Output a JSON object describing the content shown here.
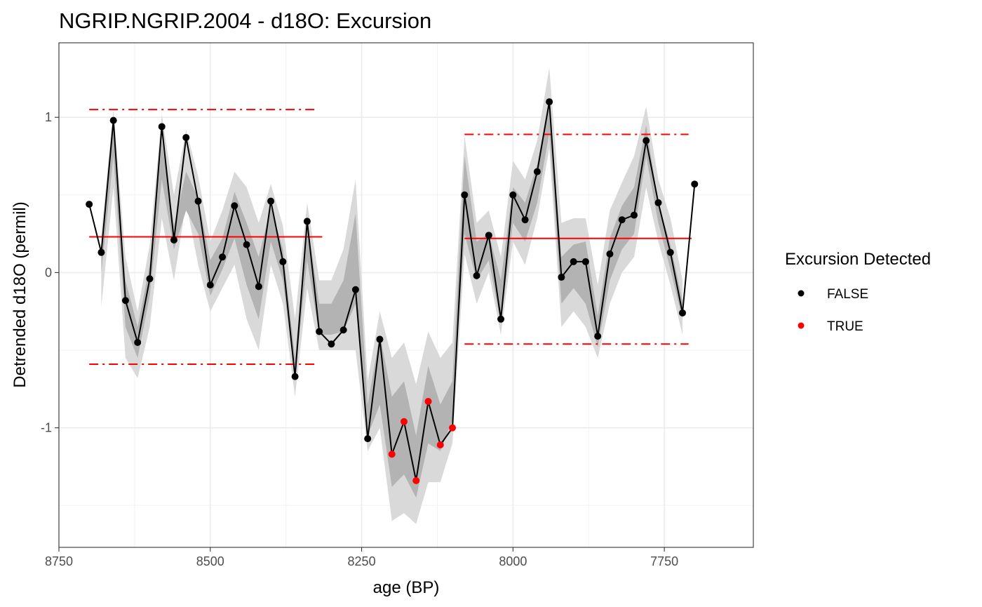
{
  "chart_data": {
    "type": "line",
    "title": "NGRIP.NGRIP.2004 - d18O: Excursion",
    "xlabel": "age (BP)",
    "ylabel": "Detrended d18O (permil)",
    "x_reversed": true,
    "xlim": [
      8750,
      7603
    ],
    "ylim": [
      -1.77,
      1.48
    ],
    "x_ticks": [
      8750,
      8500,
      8250,
      8000,
      7750
    ],
    "x_tick_labels": [
      "8750",
      "8500",
      "8250",
      "8000",
      "7750"
    ],
    "y_ticks": [
      1,
      0,
      -1
    ],
    "y_tick_labels": [
      "1",
      "0",
      "-1"
    ],
    "grid": true,
    "legend": {
      "title": "Excursion Detected",
      "placement": "right",
      "entries": [
        {
          "label": "FALSE",
          "color": "#000000"
        },
        {
          "label": "TRUE",
          "color": "#ff0000"
        }
      ]
    },
    "colors": {
      "series_line": "#000000",
      "false_point": "#000000",
      "true_point": "#ff0000",
      "reference_lines": "#ff0000",
      "outer_band": "#d9d9d9",
      "inner_band": "#b3b3b3"
    },
    "series": [
      {
        "x": [
          8700,
          8680,
          8660,
          8640,
          8620,
          8600,
          8580,
          8560,
          8540,
          8520,
          8500,
          8480,
          8460,
          8440,
          8420,
          8400,
          8380,
          8360,
          8340,
          8320,
          8300,
          8280,
          8260,
          8240,
          8220,
          8200,
          8180,
          8160,
          8140,
          8120,
          8100,
          8080,
          8060,
          8040,
          8020,
          8000,
          7980,
          7960,
          7940,
          7920,
          7900,
          7880,
          7860,
          7840,
          7820,
          7800,
          7780,
          7760,
          7740,
          7720,
          7700
        ],
        "y": [
          0.44,
          0.13,
          0.98,
          -0.18,
          -0.45,
          -0.04,
          0.94,
          0.21,
          0.87,
          0.46,
          -0.08,
          0.1,
          0.43,
          0.18,
          -0.09,
          0.46,
          0.07,
          -0.67,
          0.33,
          -0.38,
          -0.46,
          -0.37,
          -0.11,
          -1.07,
          -0.43,
          -1.17,
          -0.96,
          -1.34,
          -0.83,
          -1.11,
          -1.0,
          0.5,
          -0.02,
          0.24,
          -0.3,
          0.5,
          0.34,
          0.65,
          1.1,
          -0.03,
          0.07,
          0.07,
          -0.41,
          0.12,
          0.34,
          0.37,
          0.85,
          0.45,
          0.13,
          -0.26,
          0.57
        ],
        "excursion": [
          false,
          false,
          false,
          false,
          false,
          false,
          false,
          false,
          false,
          false,
          false,
          false,
          false,
          false,
          false,
          false,
          false,
          false,
          false,
          false,
          false,
          false,
          false,
          false,
          false,
          true,
          true,
          true,
          true,
          true,
          true,
          false,
          false,
          false,
          false,
          false,
          false,
          false,
          false,
          false,
          false,
          false,
          false,
          false,
          false,
          false,
          false,
          false,
          false,
          false,
          false
        ],
        "band_outer_upper": [
          null,
          0.25,
          1.05,
          0.1,
          -0.25,
          0.18,
          1.02,
          0.5,
          0.92,
          0.62,
          0.2,
          0.4,
          0.65,
          0.55,
          0.32,
          0.57,
          0.3,
          -0.3,
          0.45,
          -0.05,
          -0.05,
          0.15,
          0.6,
          -0.7,
          -0.25,
          -0.55,
          -0.45,
          -0.72,
          -0.38,
          -0.55,
          -0.45,
          0.88,
          0.32,
          0.4,
          0.1,
          0.72,
          0.6,
          0.85,
          1.32,
          0.32,
          0.35,
          0.35,
          -0.08,
          0.4,
          0.58,
          0.75,
          1.07,
          0.6,
          0.35,
          -0.05,
          null
        ],
        "band_outer_lower": [
          null,
          -0.22,
          0.55,
          -0.55,
          -0.68,
          -0.35,
          0.35,
          -0.05,
          0.45,
          0.05,
          -0.25,
          -0.1,
          0.05,
          -0.3,
          -0.5,
          0.05,
          -0.2,
          -0.8,
          -0.1,
          -0.5,
          -0.5,
          -0.5,
          -0.5,
          -1.15,
          -1.0,
          -1.6,
          -1.55,
          -1.62,
          -1.35,
          -1.35,
          -1.1,
          0.12,
          -0.2,
          0.0,
          -0.4,
          0.2,
          0.05,
          0.35,
          0.8,
          -0.35,
          -0.25,
          -0.35,
          -0.55,
          -0.2,
          0.0,
          0.1,
          0.55,
          0.2,
          -0.08,
          -0.4,
          null
        ],
        "band_inner_upper": [
          null,
          0.18,
          0.95,
          -0.05,
          -0.35,
          0.05,
          0.85,
          0.3,
          0.65,
          0.48,
          0.08,
          0.22,
          0.52,
          0.32,
          0.1,
          0.42,
          0.15,
          -0.55,
          0.33,
          -0.2,
          -0.2,
          -0.05,
          0.38,
          -0.85,
          -0.4,
          -0.8,
          -0.7,
          -1.05,
          -0.6,
          -0.85,
          -0.7,
          0.75,
          0.2,
          0.25,
          -0.05,
          0.55,
          0.45,
          0.7,
          1.1,
          0.1,
          0.18,
          0.2,
          -0.28,
          0.22,
          0.43,
          0.55,
          0.95,
          0.45,
          0.18,
          -0.18,
          null
        ],
        "band_inner_lower": [
          null,
          0.0,
          0.75,
          -0.35,
          -0.55,
          -0.15,
          0.6,
          0.15,
          0.4,
          0.25,
          -0.15,
          0.02,
          0.22,
          -0.08,
          -0.3,
          0.2,
          -0.05,
          -0.68,
          0.08,
          -0.4,
          -0.4,
          -0.38,
          -0.2,
          -1.05,
          -0.85,
          -1.38,
          -1.3,
          -1.45,
          -1.1,
          -1.15,
          -0.95,
          0.25,
          -0.05,
          0.08,
          -0.33,
          0.32,
          0.2,
          0.45,
          0.9,
          -0.2,
          -0.1,
          -0.2,
          -0.48,
          -0.05,
          0.15,
          0.25,
          0.75,
          0.32,
          0.02,
          -0.3,
          null
        ]
      }
    ],
    "reference_segments": [
      {
        "x_start": 8700,
        "x_end": 8315,
        "y": 0.23,
        "style": "solid"
      },
      {
        "x_start": 8700,
        "x_end": 8325,
        "y": 1.05,
        "style": "dashdot"
      },
      {
        "x_start": 8700,
        "x_end": 8325,
        "y": -0.59,
        "style": "dashdot"
      },
      {
        "x_start": 8080,
        "x_end": 7705,
        "y": 0.22,
        "style": "solid"
      },
      {
        "x_start": 8080,
        "x_end": 7710,
        "y": 0.89,
        "style": "dashdot"
      },
      {
        "x_start": 8080,
        "x_end": 7710,
        "y": -0.46,
        "style": "dashdot"
      }
    ]
  }
}
